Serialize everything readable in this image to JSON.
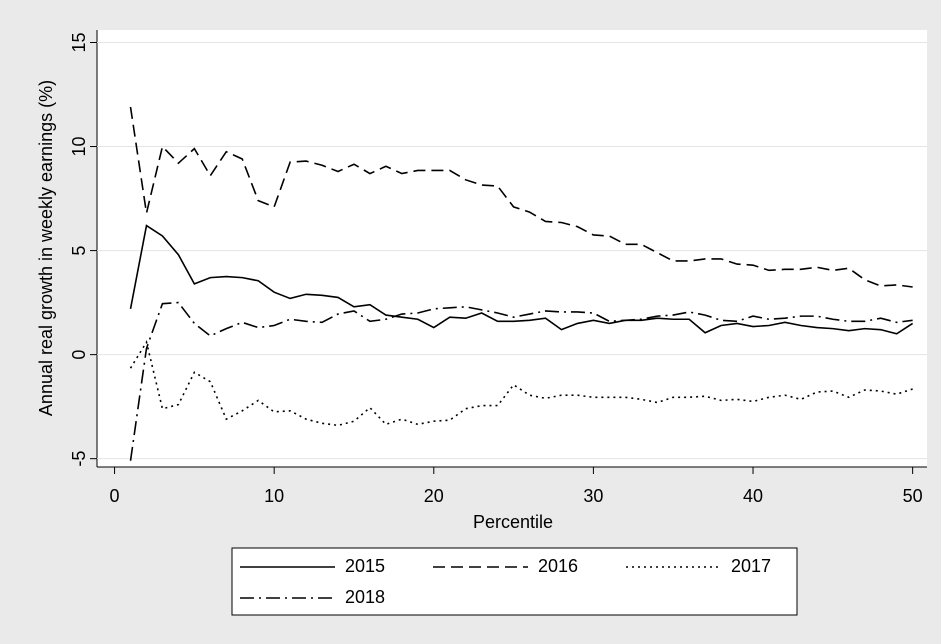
{
  "chart_data": {
    "type": "line",
    "x_label": "Percentile",
    "y_label": "Annual real growth in weekly earnings (%)",
    "x": [
      1,
      2,
      3,
      4,
      5,
      6,
      7,
      8,
      9,
      10,
      11,
      12,
      13,
      14,
      15,
      16,
      17,
      18,
      19,
      20,
      21,
      22,
      23,
      24,
      25,
      26,
      27,
      28,
      29,
      30,
      31,
      32,
      33,
      34,
      35,
      36,
      37,
      38,
      39,
      40,
      41,
      42,
      43,
      44,
      45,
      46,
      47,
      48,
      49,
      50
    ],
    "xlim": [
      -1.1,
      50.9
    ],
    "xticks": [
      0,
      10,
      20,
      30,
      40,
      50
    ],
    "ylim": [
      -5.4,
      15.6
    ],
    "yticks": [
      -5,
      0,
      5,
      10,
      15
    ],
    "grid": true,
    "series": [
      {
        "name": "2015",
        "color": "#000000",
        "dash": "solid",
        "values": [
          2.2,
          6.2,
          5.7,
          4.8,
          3.4,
          3.7,
          3.75,
          3.7,
          3.55,
          3.0,
          2.7,
          2.9,
          2.85,
          2.75,
          2.3,
          2.4,
          1.9,
          1.8,
          1.7,
          1.3,
          1.8,
          1.75,
          2.0,
          1.6,
          1.6,
          1.65,
          1.75,
          1.2,
          1.5,
          1.65,
          1.5,
          1.65,
          1.65,
          1.75,
          1.7,
          1.7,
          1.05,
          1.4,
          1.5,
          1.35,
          1.4,
          1.55,
          1.4,
          1.3,
          1.25,
          1.15,
          1.25,
          1.2,
          1.0,
          1.5
        ]
      },
      {
        "name": "2016",
        "color": "#000000",
        "dash": "dashed",
        "values": [
          11.9,
          6.8,
          10.0,
          9.2,
          9.9,
          8.6,
          9.75,
          9.4,
          7.4,
          7.1,
          9.25,
          9.3,
          9.1,
          8.8,
          9.15,
          8.7,
          9.05,
          8.7,
          8.85,
          8.85,
          8.85,
          8.4,
          8.15,
          8.1,
          7.1,
          6.85,
          6.4,
          6.35,
          6.15,
          5.75,
          5.7,
          5.3,
          5.3,
          4.9,
          4.5,
          4.5,
          4.6,
          4.6,
          4.35,
          4.3,
          4.05,
          4.1,
          4.1,
          4.2,
          4.05,
          4.15,
          3.6,
          3.3,
          3.35,
          3.25
        ]
      },
      {
        "name": "2017",
        "color": "#000000",
        "dash": "dotted",
        "values": [
          -0.65,
          0.6,
          -2.6,
          -2.4,
          -0.85,
          -1.3,
          -3.1,
          -2.7,
          -2.2,
          -2.75,
          -2.7,
          -3.1,
          -3.3,
          -3.4,
          -3.2,
          -2.55,
          -3.35,
          -3.1,
          -3.35,
          -3.2,
          -3.15,
          -2.6,
          -2.45,
          -2.45,
          -1.45,
          -1.95,
          -2.1,
          -1.95,
          -1.95,
          -2.05,
          -2.05,
          -2.05,
          -2.15,
          -2.3,
          -2.05,
          -2.05,
          -2.0,
          -2.2,
          -2.15,
          -2.25,
          -2.05,
          -1.95,
          -2.15,
          -1.8,
          -1.75,
          -2.05,
          -1.7,
          -1.75,
          -1.9,
          -1.65
        ]
      },
      {
        "name": "2018",
        "color": "#000000",
        "dash": "dashdot",
        "values": [
          -5.1,
          0.3,
          2.45,
          2.5,
          1.5,
          0.9,
          1.25,
          1.55,
          1.3,
          1.4,
          1.7,
          1.6,
          1.55,
          1.95,
          2.1,
          1.6,
          1.7,
          1.95,
          2.0,
          2.2,
          2.25,
          2.3,
          2.15,
          2.0,
          1.8,
          1.95,
          2.1,
          2.05,
          2.05,
          2.0,
          1.6,
          1.65,
          1.7,
          1.85,
          1.9,
          2.05,
          1.9,
          1.65,
          1.6,
          1.85,
          1.7,
          1.75,
          1.85,
          1.85,
          1.7,
          1.6,
          1.6,
          1.75,
          1.55,
          1.65
        ]
      }
    ]
  }
}
